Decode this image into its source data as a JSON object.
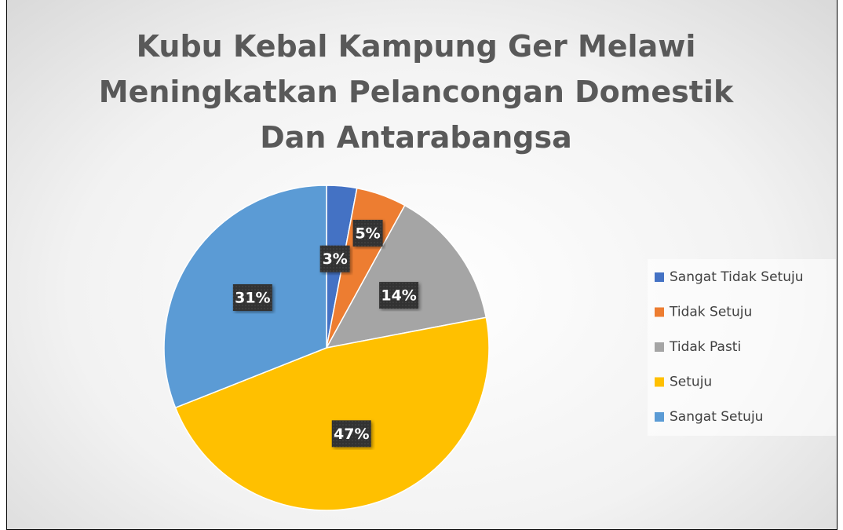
{
  "chart_data": {
    "type": "pie",
    "title": "Kubu Kebal Kampung Ger Melawi Meningkatkan Pelancongan Domestik Dan Antarabangsa",
    "categories": [
      "Sangat Tidak Setuju",
      "Tidak Setuju",
      "Tidak Pasti",
      "Setuju",
      "Sangat Setuju"
    ],
    "values": [
      3,
      5,
      14,
      47,
      31
    ],
    "value_labels": [
      "3%",
      "5%",
      "14%",
      "47%",
      "31%"
    ],
    "colors": [
      "#4472c4",
      "#ed7d31",
      "#a5a5a5",
      "#ffc000",
      "#5b9bd5"
    ],
    "legend": "right"
  }
}
